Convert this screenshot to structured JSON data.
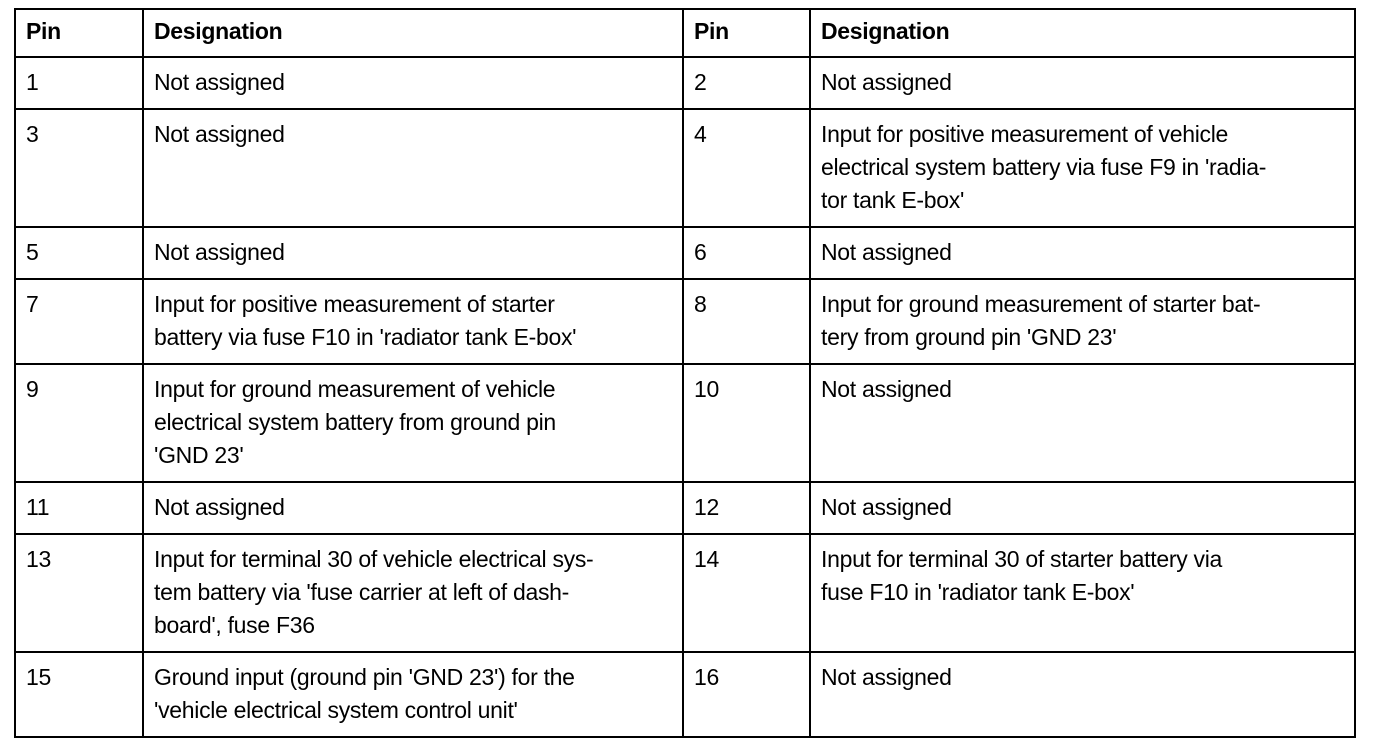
{
  "headers": [
    "Pin",
    "Designation",
    "Pin",
    "Designation"
  ],
  "rows": [
    [
      "1",
      "Not assigned",
      "2",
      "Not assigned"
    ],
    [
      "3",
      "Not assigned",
      "4",
      "Input for positive measurement of vehicle\nelectrical system battery via fuse F9 in 'radia-\ntor tank E-box'"
    ],
    [
      "5",
      "Not assigned",
      "6",
      "Not assigned"
    ],
    [
      "7",
      "Input for positive measurement of starter\nbattery via fuse F10 in 'radiator tank E-box'",
      "8",
      "Input for ground measurement of starter bat-\ntery from ground pin 'GND 23'"
    ],
    [
      "9",
      "Input for ground measurement of vehicle\nelectrical system battery from ground pin\n'GND 23'",
      "10",
      "Not assigned"
    ],
    [
      "11",
      "Not assigned",
      "12",
      "Not assigned"
    ],
    [
      "13",
      "Input for terminal 30 of vehicle electrical sys-\ntem battery via 'fuse carrier at left of dash-\nboard', fuse F36",
      "14",
      "Input for terminal 30 of starter battery via\nfuse F10 in 'radiator tank E-box'"
    ],
    [
      "15",
      "Ground input (ground pin 'GND 23') for the\n'vehicle electrical system control unit'",
      "16",
      "Not assigned"
    ]
  ]
}
